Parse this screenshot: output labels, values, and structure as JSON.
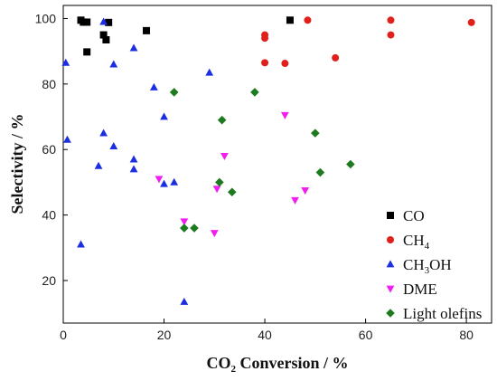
{
  "chart_data": {
    "type": "scatter",
    "xlabel": {
      "prefix": "CO",
      "sub": "2",
      "suffix": " Conversion / %"
    },
    "ylabel": "Selectivity / %",
    "xlim": [
      0,
      85
    ],
    "ylim": [
      7,
      104
    ],
    "xticks": [
      0,
      20,
      40,
      60,
      80
    ],
    "yticks": [
      20,
      40,
      60,
      80,
      100
    ],
    "grid": false,
    "legend_position": "bottom-right",
    "series": [
      {
        "name": "CO",
        "label_parts": [
          "CO"
        ],
        "marker": "square",
        "color": "#000000",
        "points": [
          [
            3.5,
            99.5
          ],
          [
            4,
            98.9
          ],
          [
            4.7,
            98.9
          ],
          [
            4.7,
            89.8
          ],
          [
            8,
            95
          ],
          [
            8.5,
            93.5
          ],
          [
            9,
            98.8
          ],
          [
            16.5,
            96.3
          ],
          [
            45,
            99.5
          ]
        ]
      },
      {
        "name": "CH4",
        "label_parts": [
          "CH",
          "4",
          ""
        ],
        "marker": "circle",
        "color": "#e0201b",
        "points": [
          [
            40,
            86.5
          ],
          [
            40,
            94
          ],
          [
            40,
            95
          ],
          [
            44,
            86.3
          ],
          [
            48.5,
            99.5
          ],
          [
            54,
            88
          ],
          [
            65,
            95
          ],
          [
            65,
            99.5
          ],
          [
            81,
            98.8
          ]
        ]
      },
      {
        "name": "CH3OH",
        "label_parts": [
          "CH",
          "3",
          "OH"
        ],
        "marker": "triangle-up",
        "color": "#1b2fe0",
        "points": [
          [
            0.5,
            86.5
          ],
          [
            0.8,
            63
          ],
          [
            3.5,
            31
          ],
          [
            7,
            55
          ],
          [
            8,
            65
          ],
          [
            8,
            99
          ],
          [
            10,
            86
          ],
          [
            10,
            61
          ],
          [
            14,
            91
          ],
          [
            14,
            57
          ],
          [
            14,
            54
          ],
          [
            18,
            79
          ],
          [
            20,
            70
          ],
          [
            20,
            49.5
          ],
          [
            22,
            50
          ],
          [
            24,
            13.5
          ],
          [
            29,
            83.5
          ]
        ]
      },
      {
        "name": "DME",
        "label_parts": [
          "DME"
        ],
        "marker": "triangle-down",
        "color": "#f01ff0",
        "points": [
          [
            19,
            51
          ],
          [
            24,
            38
          ],
          [
            30,
            34.5
          ],
          [
            30.5,
            48
          ],
          [
            32,
            58
          ],
          [
            44,
            70.5
          ],
          [
            46,
            44.5
          ],
          [
            48,
            47.5
          ]
        ]
      },
      {
        "name": "Light olefins",
        "label_parts": [
          "Light olefins"
        ],
        "marker": "diamond",
        "color": "#1e7a1e",
        "points": [
          [
            22,
            77.5
          ],
          [
            24,
            36
          ],
          [
            26,
            36
          ],
          [
            31,
            50
          ],
          [
            31.5,
            69
          ],
          [
            33.5,
            47
          ],
          [
            38,
            77.5
          ],
          [
            50,
            65
          ],
          [
            51,
            53
          ],
          [
            57,
            55.5
          ]
        ]
      }
    ]
  }
}
